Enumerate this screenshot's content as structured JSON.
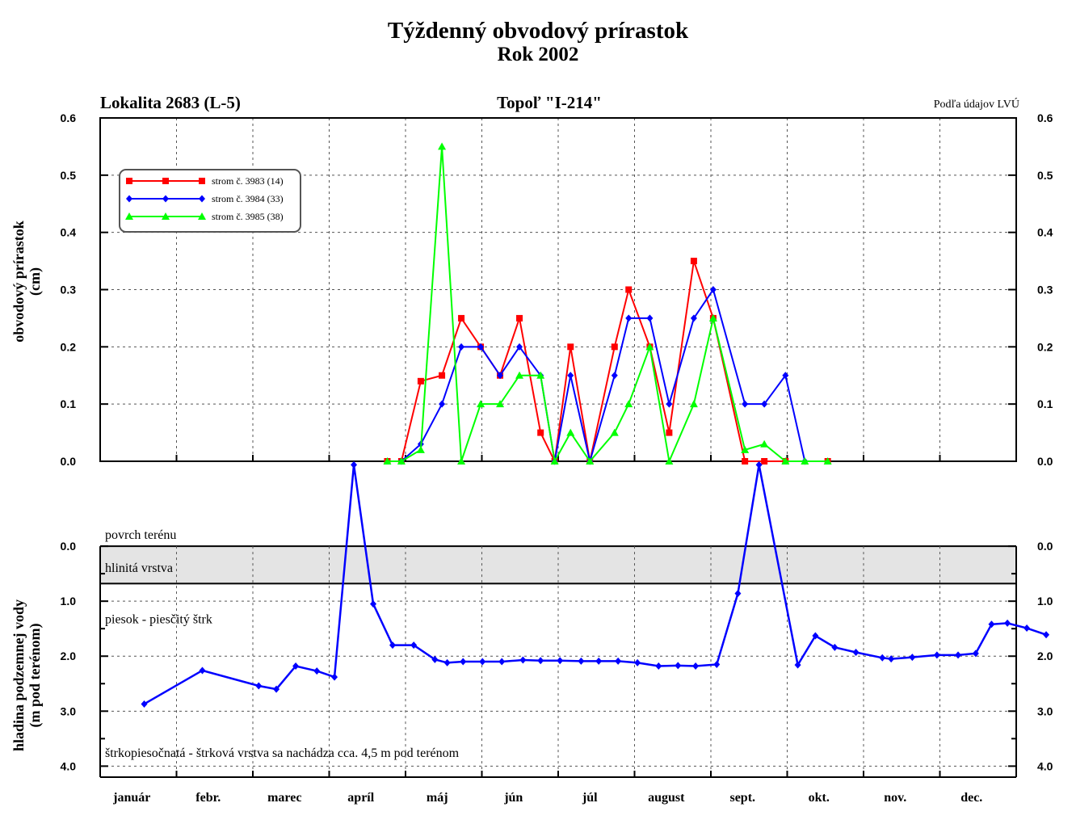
{
  "header": {
    "title": "Týždenný obvodový prírastok",
    "subtitle": "Rok 2002",
    "location": "Lokalita 2683 (L-5)",
    "tree": "Topoľ \"I-214\"",
    "source": "Podľa údajov LVÚ"
  },
  "months": [
    "január",
    "febr.",
    "marec",
    "apríl",
    "máj",
    "jún",
    "júl",
    "august",
    "sept.",
    "okt.",
    "nov.",
    "dec."
  ],
  "chart_data": [
    {
      "type": "line",
      "ylabel": "obvodový prírastok",
      "ylabel2": "(cm)",
      "ylim": [
        0,
        0.6
      ],
      "yticks": [
        "0.0",
        "0.1",
        "0.2",
        "0.3",
        "0.4",
        "0.5",
        "0.6"
      ],
      "x_unit": "week of year",
      "xlim": [
        0,
        52
      ],
      "grid": true,
      "legend_position": "top-left",
      "series": [
        {
          "name": "strom č. 3983 (14)",
          "color": "#ff0000",
          "marker": "square",
          "points": [
            [
              16.3,
              0
            ],
            [
              17.1,
              0
            ],
            [
              18.2,
              0.14
            ],
            [
              19.4,
              0.15
            ],
            [
              20.5,
              0.25
            ],
            [
              21.6,
              0.2
            ],
            [
              22.7,
              0.15
            ],
            [
              23.8,
              0.25
            ],
            [
              25.0,
              0.05
            ],
            [
              25.8,
              0
            ],
            [
              26.7,
              0.2
            ],
            [
              27.8,
              0
            ],
            [
              29.2,
              0.2
            ],
            [
              30.0,
              0.3
            ],
            [
              31.2,
              0.2
            ],
            [
              32.3,
              0.05
            ],
            [
              33.7,
              0.35
            ],
            [
              34.8,
              0.25
            ],
            [
              36.6,
              0
            ],
            [
              37.7,
              0
            ],
            [
              38.9,
              0
            ],
            [
              41.3,
              0
            ]
          ]
        },
        {
          "name": "strom č. 3984 (33)",
          "color": "#0000ff",
          "marker": "diamond",
          "points": [
            [
              17.1,
              0
            ],
            [
              18.2,
              0.03
            ],
            [
              19.4,
              0.1
            ],
            [
              20.5,
              0.2
            ],
            [
              21.6,
              0.2
            ],
            [
              22.7,
              0.15
            ],
            [
              23.8,
              0.2
            ],
            [
              25.0,
              0.15
            ],
            [
              25.8,
              0
            ],
            [
              26.7,
              0.15
            ],
            [
              27.8,
              0
            ],
            [
              29.2,
              0.15
            ],
            [
              30.0,
              0.25
            ],
            [
              31.2,
              0.25
            ],
            [
              32.3,
              0.1
            ],
            [
              33.7,
              0.25
            ],
            [
              34.8,
              0.3
            ],
            [
              36.6,
              0.1
            ],
            [
              37.7,
              0.1
            ],
            [
              38.9,
              0.15
            ],
            [
              40.0,
              0
            ]
          ]
        },
        {
          "name": "strom č. 3985 (38)",
          "color": "#00ff00",
          "marker": "triangle",
          "points": [
            [
              16.3,
              0
            ],
            [
              17.1,
              0
            ],
            [
              18.2,
              0.02
            ],
            [
              19.4,
              0.55
            ],
            [
              20.5,
              0
            ],
            [
              21.6,
              0.1
            ],
            [
              22.7,
              0.1
            ],
            [
              23.8,
              0.15
            ],
            [
              25.0,
              0.15
            ],
            [
              25.8,
              0
            ],
            [
              26.7,
              0.05
            ],
            [
              27.8,
              0
            ],
            [
              29.2,
              0.05
            ],
            [
              30.0,
              0.1
            ],
            [
              31.2,
              0.2
            ],
            [
              32.3,
              0
            ],
            [
              33.7,
              0.1
            ],
            [
              34.8,
              0.25
            ],
            [
              36.6,
              0.02
            ],
            [
              37.7,
              0.03
            ],
            [
              38.9,
              0
            ],
            [
              40.0,
              0
            ],
            [
              41.3,
              0
            ]
          ]
        }
      ]
    },
    {
      "type": "line",
      "ylabel": "hladina podzemnej vody",
      "ylabel2": "(m pod terénom)",
      "ylim": [
        -1.5,
        4.2
      ],
      "yticks": [
        "0.0",
        "1.0",
        "2.0",
        "3.0",
        "4.0"
      ],
      "x_unit": "week of year",
      "xlim": [
        0,
        52
      ],
      "grid": true,
      "surface_label": "povrch terénu",
      "layers": [
        {
          "label": "hlinitá vrstva",
          "from": 0,
          "to": 0.68,
          "fill": "#e4e4e4"
        },
        {
          "label": "piesok - piesčitý štrk",
          "from": 0.68,
          "to": 4.2
        },
        {
          "label": "štrkopiesočnatá - štrková vrstva sa nachádza cca. 4,5 m pod terénom",
          "from": 4.2,
          "to": 4.2
        }
      ],
      "series": [
        {
          "color": "#0000ff",
          "marker": "diamond",
          "points": [
            [
              2.5,
              2.87
            ],
            [
              5.8,
              2.26
            ],
            [
              9.0,
              2.54
            ],
            [
              10.0,
              2.6
            ],
            [
              11.1,
              2.18
            ],
            [
              12.3,
              2.27
            ],
            [
              13.3,
              2.38
            ],
            [
              14.4,
              -1.48
            ],
            [
              15.5,
              1.05
            ],
            [
              16.6,
              1.8
            ],
            [
              17.8,
              1.8
            ],
            [
              19.0,
              2.06
            ],
            [
              19.7,
              2.12
            ],
            [
              20.6,
              2.1
            ],
            [
              21.7,
              2.1
            ],
            [
              22.8,
              2.1
            ],
            [
              24.0,
              2.07
            ],
            [
              25.0,
              2.08
            ],
            [
              26.1,
              2.08
            ],
            [
              27.3,
              2.09
            ],
            [
              28.3,
              2.09
            ],
            [
              29.4,
              2.09
            ],
            [
              30.5,
              2.12
            ],
            [
              31.7,
              2.18
            ],
            [
              32.8,
              2.17
            ],
            [
              33.8,
              2.18
            ],
            [
              35.0,
              2.15
            ],
            [
              36.2,
              0.86
            ],
            [
              37.4,
              -1.48
            ],
            [
              39.6,
              2.16
            ],
            [
              40.6,
              1.63
            ],
            [
              41.7,
              1.84
            ],
            [
              42.9,
              1.93
            ],
            [
              44.4,
              2.03
            ],
            [
              44.9,
              2.05
            ],
            [
              46.1,
              2.02
            ],
            [
              47.5,
              1.98
            ],
            [
              48.7,
              1.98
            ],
            [
              49.7,
              1.95
            ],
            [
              50.6,
              1.42
            ],
            [
              51.5,
              1.4
            ],
            [
              52.6,
              1.49
            ],
            [
              53.7,
              1.61
            ]
          ]
        }
      ]
    }
  ]
}
